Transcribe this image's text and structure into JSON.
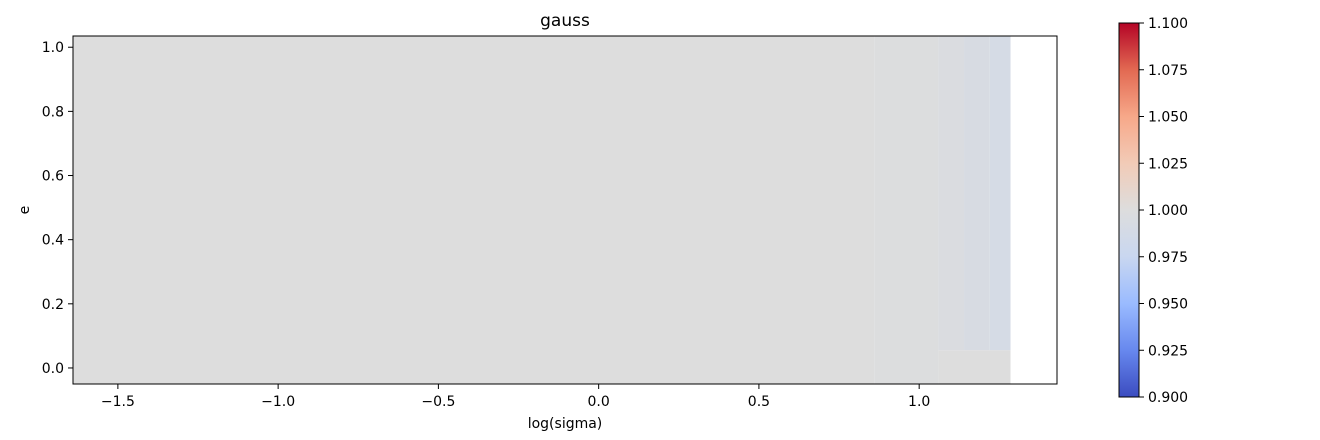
{
  "chart_data": {
    "type": "heatmap",
    "title": "gauss",
    "xlabel": "log(sigma)",
    "ylabel": "e",
    "xlim": [
      -1.64,
      1.43
    ],
    "ylim": [
      -0.05,
      1.035
    ],
    "x_ticks": [
      -1.5,
      -1.0,
      -0.5,
      0.0,
      0.5,
      1.0
    ],
    "x_tick_labels": [
      "−1.5",
      "−1.0",
      "−0.5",
      "0.0",
      "0.5",
      "1.0"
    ],
    "y_ticks": [
      0.0,
      0.2,
      0.4,
      0.6,
      0.8,
      1.0
    ],
    "y_tick_labels": [
      "0.0",
      "0.2",
      "0.4",
      "0.6",
      "0.8",
      "1.0"
    ],
    "grid": false,
    "colormap": "coolwarm",
    "default_value": 1.0,
    "cells": [
      {
        "x0": -1.64,
        "x1": 0.86,
        "y0": -0.05,
        "y1": 1.035,
        "value": 1.0
      },
      {
        "x0": 0.86,
        "x1": 1.06,
        "y0": -0.05,
        "y1": 1.035,
        "value": 0.999
      },
      {
        "x0": 1.06,
        "x1": 1.14,
        "y0": 0.055,
        "y1": 1.035,
        "value": 0.996
      },
      {
        "x0": 1.14,
        "x1": 1.22,
        "y0": 0.055,
        "y1": 1.035,
        "value": 0.993
      },
      {
        "x0": 1.22,
        "x1": 1.285,
        "y0": 0.055,
        "y1": 1.035,
        "value": 0.99
      },
      {
        "x0": 1.06,
        "x1": 1.285,
        "y0": -0.05,
        "y1": 0.055,
        "value": 1.0
      }
    ],
    "colorbar": {
      "min": 0.9,
      "max": 1.1,
      "ticks": [
        0.9,
        0.925,
        0.95,
        0.975,
        1.0,
        1.025,
        1.05,
        1.075,
        1.1
      ],
      "tick_labels": [
        "0.900",
        "0.925",
        "0.950",
        "0.975",
        "1.000",
        "1.025",
        "1.050",
        "1.075",
        "1.100"
      ],
      "colors": [
        "#3b4cc0",
        "#6788ee",
        "#9abbff",
        "#c9d7f0",
        "#dddddd",
        "#f2cbb7",
        "#f7a889",
        "#e26952",
        "#b40426"
      ]
    }
  }
}
